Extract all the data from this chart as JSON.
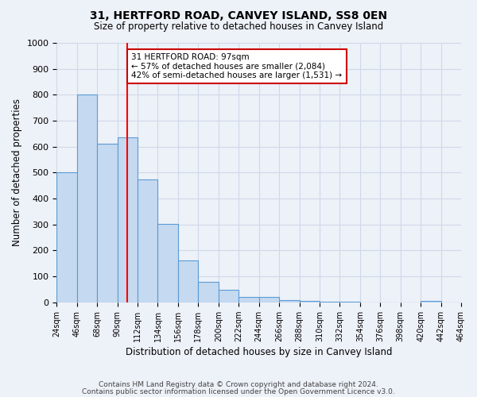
{
  "title": "31, HERTFORD ROAD, CANVEY ISLAND, SS8 0EN",
  "subtitle": "Size of property relative to detached houses in Canvey Island",
  "xlabel": "Distribution of detached houses by size in Canvey Island",
  "ylabel": "Number of detached properties",
  "bar_values": [
    500,
    800,
    610,
    635,
    475,
    303,
    163,
    78,
    47,
    22,
    20,
    10,
    5,
    3,
    2,
    1,
    1,
    1,
    5,
    0
  ],
  "bin_labels": [
    "24sqm",
    "46sqm",
    "68sqm",
    "90sqm",
    "112sqm",
    "134sqm",
    "156sqm",
    "178sqm",
    "200sqm",
    "222sqm",
    "244sqm",
    "266sqm",
    "288sqm",
    "310sqm",
    "332sqm",
    "354sqm",
    "376sqm",
    "398sqm",
    "420sqm",
    "442sqm",
    "464sqm"
  ],
  "bar_color": "#c5d9f0",
  "bar_edge_color": "#5b9bd5",
  "red_line_x": 3.5,
  "annotation_title": "31 HERTFORD ROAD: 97sqm",
  "annotation_line1": "← 57% of detached houses are smaller (2,084)",
  "annotation_line2": "42% of semi-detached houses are larger (1,531) →",
  "annotation_box_color": "#ffffff",
  "annotation_box_edge_color": "#cc0000",
  "ylim": [
    0,
    1000
  ],
  "yticks": [
    0,
    100,
    200,
    300,
    400,
    500,
    600,
    700,
    800,
    900,
    1000
  ],
  "grid_color": "#d0d8e8",
  "bg_color": "#edf1f8",
  "footer_line1": "Contains HM Land Registry data © Crown copyright and database right 2024.",
  "footer_line2": "Contains public sector information licensed under the Open Government Licence v3.0."
}
